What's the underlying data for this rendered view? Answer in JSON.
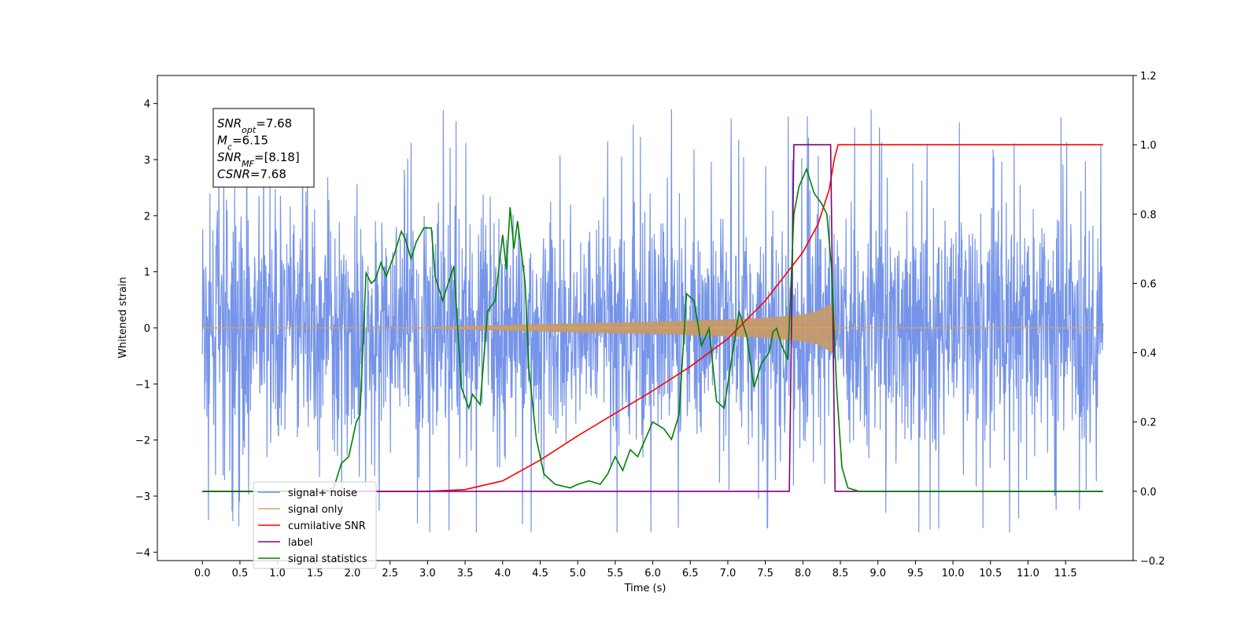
{
  "chart_data": {
    "type": "line",
    "xlabel": "Time (s)",
    "ylabel": "Whitened strain",
    "xlim": [
      -0.6,
      12.4
    ],
    "ylim": [
      -4.15,
      4.5
    ],
    "ylim_right": [
      -0.2,
      1.2
    ],
    "x_ticks": [
      "0.0",
      "0.5",
      "1.0",
      "1.5",
      "2.0",
      "2.5",
      "3.0",
      "3.5",
      "4.0",
      "4.5",
      "5.0",
      "5.5",
      "6.0",
      "6.5",
      "7.0",
      "7.5",
      "8.0",
      "8.5",
      "9.0",
      "9.5",
      "10.0",
      "10.5",
      "11.0",
      "11.5"
    ],
    "y_ticks_left": [
      "4",
      "3",
      "2",
      "1",
      "0",
      "−1",
      "−2",
      "−3",
      "−4"
    ],
    "y_ticks_right": [
      "1.2",
      "1.0",
      "0.8",
      "0.6",
      "0.4",
      "0.2",
      "0.0",
      "−0.2"
    ],
    "legend_position": "lower-left",
    "annotation": {
      "lines": [
        {
          "base": "SNR",
          "sub": "opt",
          "rest": "=7.68"
        },
        {
          "base": "M",
          "sub": "c",
          "rest": "=6.15"
        },
        {
          "base": "SNR",
          "sub": "MF",
          "rest": "=[8.18]"
        },
        {
          "base": "CSNR",
          "sub": "",
          "rest": "=7.68"
        }
      ]
    },
    "series": [
      {
        "name": "signal+ noise",
        "color": "#6f8ee8",
        "axis": "left",
        "description_values": "noise trace, roughly within ±2.8, spikes to about 4"
      },
      {
        "name": "signal only",
        "color": "#d4a56a",
        "axis": "left",
        "envelope": {
          "x": [
            0.0,
            3.0,
            4.0,
            5.0,
            6.0,
            6.5,
            7.0,
            7.5,
            8.0,
            8.2,
            8.4,
            8.45
          ],
          "y": [
            0.0,
            0.01,
            0.05,
            0.08,
            0.11,
            0.13,
            0.15,
            0.18,
            0.24,
            0.3,
            0.45,
            0.0
          ]
        }
      },
      {
        "name": "cumilative SNR",
        "color": "#ff0000",
        "axis": "right",
        "x": [
          0.0,
          3.0,
          3.5,
          4.0,
          4.5,
          5.0,
          5.5,
          6.0,
          6.5,
          7.0,
          7.5,
          8.0,
          8.2,
          8.35,
          8.42,
          8.47,
          12.0
        ],
        "y": [
          0.0,
          0.0,
          0.005,
          0.03,
          0.09,
          0.16,
          0.225,
          0.29,
          0.36,
          0.44,
          0.55,
          0.69,
          0.77,
          0.87,
          0.96,
          1.0,
          1.0
        ]
      },
      {
        "name": "label",
        "color": "#800080",
        "axis": "right",
        "x": [
          0.0,
          7.82,
          7.88,
          8.37,
          8.43,
          12.0
        ],
        "y": [
          0.0,
          0.0,
          1.0,
          1.0,
          0.0,
          0.0
        ]
      },
      {
        "name": "signal statistics",
        "color": "#008000",
        "axis": "right",
        "x": [
          0.0,
          1.6,
          1.75,
          1.85,
          1.95,
          2.05,
          2.1,
          2.18,
          2.25,
          2.3,
          2.38,
          2.45,
          2.55,
          2.65,
          2.7,
          2.78,
          2.85,
          2.95,
          3.05,
          3.1,
          3.2,
          3.35,
          3.45,
          3.55,
          3.6,
          3.7,
          3.8,
          3.9,
          4.0,
          4.05,
          4.1,
          4.15,
          4.2,
          4.3,
          4.35,
          4.45,
          4.55,
          4.7,
          4.9,
          5.0,
          5.15,
          5.3,
          5.4,
          5.5,
          5.6,
          5.7,
          5.8,
          5.9,
          6.0,
          6.15,
          6.25,
          6.35,
          6.45,
          6.55,
          6.65,
          6.75,
          6.85,
          6.95,
          7.05,
          7.15,
          7.25,
          7.35,
          7.45,
          7.55,
          7.6,
          7.65,
          7.72,
          7.8,
          7.88,
          7.95,
          8.05,
          8.15,
          8.25,
          8.32,
          8.38,
          8.45,
          8.52,
          8.6,
          8.75,
          9.0,
          12.0
        ],
        "y": [
          0.0,
          0.0,
          0.01,
          0.08,
          0.1,
          0.2,
          0.22,
          0.63,
          0.6,
          0.61,
          0.66,
          0.62,
          0.68,
          0.75,
          0.73,
          0.67,
          0.72,
          0.76,
          0.76,
          0.62,
          0.55,
          0.65,
          0.3,
          0.24,
          0.28,
          0.25,
          0.52,
          0.55,
          0.74,
          0.64,
          0.82,
          0.7,
          0.78,
          0.6,
          0.35,
          0.15,
          0.05,
          0.02,
          0.01,
          0.02,
          0.03,
          0.02,
          0.05,
          0.1,
          0.06,
          0.12,
          0.1,
          0.15,
          0.2,
          0.18,
          0.15,
          0.22,
          0.57,
          0.55,
          0.42,
          0.47,
          0.26,
          0.24,
          0.38,
          0.52,
          0.45,
          0.3,
          0.37,
          0.4,
          0.46,
          0.47,
          0.42,
          0.38,
          0.8,
          0.88,
          0.93,
          0.86,
          0.83,
          0.8,
          0.65,
          0.3,
          0.07,
          0.01,
          0.0,
          0.0,
          0.0
        ]
      }
    ]
  }
}
